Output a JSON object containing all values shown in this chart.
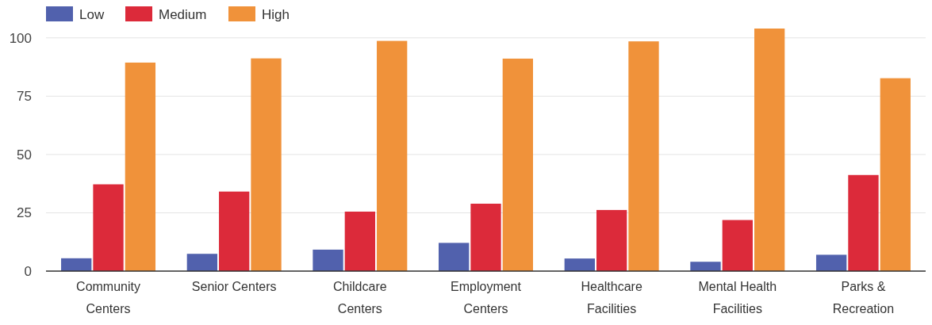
{
  "chart_data": {
    "type": "bar",
    "categories": [
      "Community Centers",
      "Senior Centers",
      "Childcare Centers",
      "Employment Centers",
      "Healthcare Facilities",
      "Mental Health Facilities",
      "Parks & Recreation"
    ],
    "series": [
      {
        "name": "Low",
        "color": "#5161ad",
        "values": [
          5.5,
          7.4,
          9.2,
          12.1,
          5.4,
          4,
          7
        ]
      },
      {
        "name": "Medium",
        "color": "#dc2a3a",
        "values": [
          37.2,
          34.1,
          25.5,
          28.9,
          26.2,
          21.9,
          41.2
        ]
      },
      {
        "name": "High",
        "color": "#f0923a",
        "values": [
          89.4,
          91.2,
          98.7,
          91.1,
          98.5,
          104,
          82.7
        ]
      }
    ],
    "ylim": [
      0,
      104
    ],
    "yticks": [
      0,
      25,
      50,
      75,
      100
    ],
    "grid": "y",
    "legend": "top left"
  }
}
